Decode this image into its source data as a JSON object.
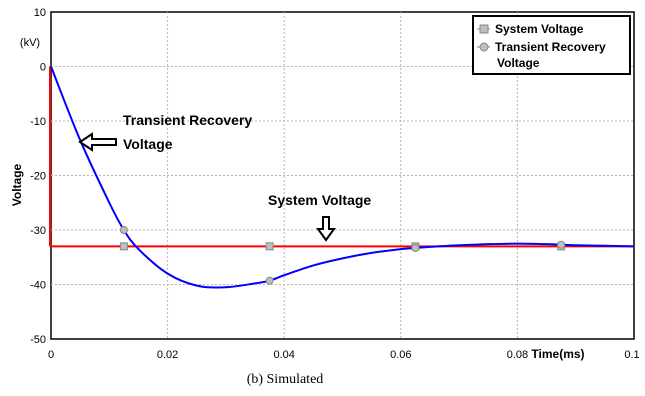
{
  "caption": "(b) Simulated",
  "chart_data": {
    "type": "line",
    "xlabel": "Time(ms)",
    "ylabel": "Voltage",
    "y_unit": "(kV)",
    "xlim": [
      0,
      0.1
    ],
    "ylim": [
      -50,
      10
    ],
    "x_ticks": [
      0,
      0.02,
      0.04,
      0.06,
      0.08,
      0.1
    ],
    "x_tick_labels": [
      "0",
      "0.02",
      "0.04",
      "0.06",
      "0.08",
      "0.1"
    ],
    "y_ticks": [
      10,
      0,
      -10,
      -20,
      -30,
      -40,
      -50
    ],
    "y_tick_labels": [
      "10",
      "0",
      "-10",
      "-20",
      "-30",
      "-40",
      "-50"
    ],
    "grid": true,
    "legend_position": "top-right",
    "legend_title_line1": "System Voltage",
    "legend_title_line2": "Transient Recovery",
    "legend_title_line3": "Voltage",
    "series": [
      {
        "name": "System Voltage",
        "color": "#ff0000",
        "marker": "square",
        "x": [
          0,
          0.0125,
          0.0375,
          0.0625,
          0.0875,
          0.1
        ],
        "y": [
          -33,
          -33,
          -33,
          -33,
          -33,
          -33
        ],
        "marker_x": [
          0.0125,
          0.0375,
          0.0625,
          0.0875
        ]
      },
      {
        "name": "Transient Recovery Voltage",
        "color": "#0000ff",
        "marker": "circle",
        "x": [
          0,
          0.005,
          0.01,
          0.0125,
          0.015,
          0.02,
          0.025,
          0.03,
          0.035,
          0.0375,
          0.04,
          0.045,
          0.05,
          0.055,
          0.06,
          0.0625,
          0.065,
          0.07,
          0.075,
          0.08,
          0.085,
          0.0875,
          0.09,
          0.095,
          0.1
        ],
        "y": [
          0,
          -13.5,
          -25,
          -30,
          -33.5,
          -38,
          -40.2,
          -40.5,
          -39.8,
          -39.3,
          -38.3,
          -36.5,
          -35.2,
          -34.2,
          -33.5,
          -33.3,
          -33.1,
          -32.8,
          -32.6,
          -32.5,
          -32.6,
          -32.7,
          -32.8,
          -32.9,
          -33
        ],
        "marker_x": [
          0.0125,
          0.0375,
          0.0625,
          0.0875
        ],
        "marker_y": [
          -30,
          -39.3,
          -33.3,
          -32.7
        ]
      }
    ],
    "annotations": [
      {
        "line1": "Transient Recovery",
        "line2": "Voltage",
        "arrow": "left",
        "x": 0.005,
        "y": -13.5
      },
      {
        "line1": "System Voltage",
        "arrow": "down",
        "x": 0.048,
        "y": -30.5
      }
    ]
  }
}
